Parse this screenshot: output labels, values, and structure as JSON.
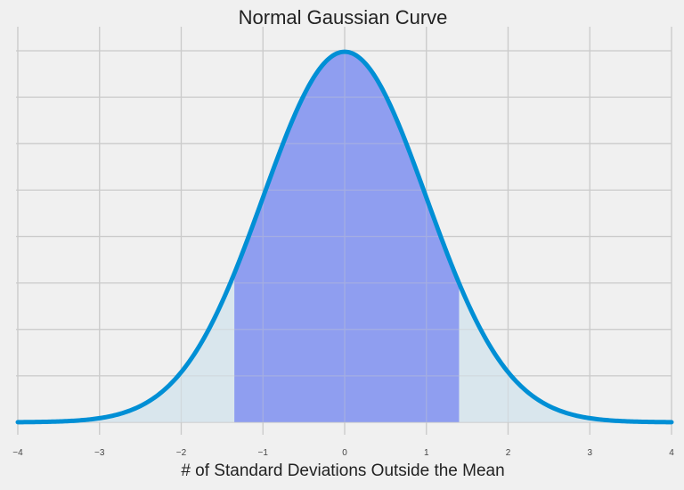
{
  "chart_data": {
    "type": "area",
    "title": "Normal Gaussian Curve",
    "xlabel": "# of Standard Deviations Outside the Mean",
    "ylabel": "",
    "xlim": [
      -4,
      4
    ],
    "ylim": [
      0,
      0.4
    ],
    "xticks": [
      "-4",
      "-3",
      "-2",
      "-1",
      "0",
      "1",
      "2",
      "3",
      "4"
    ],
    "ytick_step": 0.05,
    "y_tick_labels_shown": false,
    "grid": true,
    "distribution": {
      "mean": 0,
      "std": 1
    },
    "highlight_range": [
      -1.35,
      1.4
    ],
    "colors": {
      "background": "#f0f0f0",
      "grid": "#cbcbcb",
      "curve": "#008fd5",
      "tail_fill": "#d6e4ec",
      "highlight_fill": "#8f9ef0"
    }
  }
}
